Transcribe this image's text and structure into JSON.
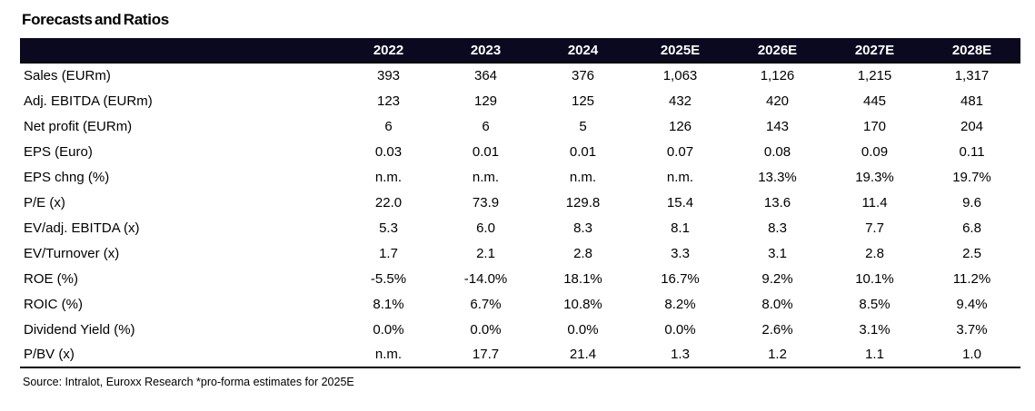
{
  "title": "Forecasts and Ratios",
  "table": {
    "columns": [
      "2022",
      "2023",
      "2024",
      "2025E",
      "2026E",
      "2027E",
      "2028E"
    ],
    "rows": [
      {
        "label": "Sales (EURm)",
        "values": [
          "393",
          "364",
          "376",
          "1,063",
          "1,126",
          "1,215",
          "1,317"
        ]
      },
      {
        "label": "Adj. EBITDA (EURm)",
        "values": [
          "123",
          "129",
          "125",
          "432",
          "420",
          "445",
          "481"
        ]
      },
      {
        "label": "Net profit (EURm)",
        "values": [
          "6",
          "6",
          "5",
          "126",
          "143",
          "170",
          "204"
        ]
      },
      {
        "label": "EPS (Euro)",
        "values": [
          "0.03",
          "0.01",
          "0.01",
          "0.07",
          "0.08",
          "0.09",
          "0.11"
        ]
      },
      {
        "label": "EPS chng (%)",
        "values": [
          "n.m.",
          "n.m.",
          "n.m.",
          "n.m.",
          "13.3%",
          "19.3%",
          "19.7%"
        ]
      },
      {
        "label": "P/E (x)",
        "values": [
          "22.0",
          "73.9",
          "129.8",
          "15.4",
          "13.6",
          "11.4",
          "9.6"
        ]
      },
      {
        "label": "EV/adj. EBITDA (x)",
        "values": [
          "5.3",
          "6.0",
          "8.3",
          "8.1",
          "8.3",
          "7.7",
          "6.8"
        ]
      },
      {
        "label": "EV/Turnover (x)",
        "values": [
          "1.7",
          "2.1",
          "2.8",
          "3.3",
          "3.1",
          "2.8",
          "2.5"
        ]
      },
      {
        "label": "ROE (%)",
        "values": [
          "-5.5%",
          "-14.0%",
          "18.1%",
          "16.7%",
          "9.2%",
          "10.1%",
          "11.2%"
        ]
      },
      {
        "label": "ROIC (%)",
        "values": [
          "8.1%",
          "6.7%",
          "10.8%",
          "8.2%",
          "8.0%",
          "8.5%",
          "9.4%"
        ]
      },
      {
        "label": "Dividend Yield (%)",
        "values": [
          "0.0%",
          "0.0%",
          "0.0%",
          "0.0%",
          "2.6%",
          "3.1%",
          "3.7%"
        ]
      },
      {
        "label": "P/BV (x)",
        "values": [
          "n.m.",
          "17.7",
          "21.4",
          "1.3",
          "1.2",
          "1.1",
          "1.0"
        ]
      }
    ]
  },
  "footer": {
    "source": "Source: Intralot, Euroxx Research *pro-forma estimates for 2025E"
  },
  "colors": {
    "header_bg": "#0a0920",
    "header_text": "#ffffff",
    "body_text": "#000000",
    "border": "#000000",
    "page_bg": "#ffffff"
  }
}
